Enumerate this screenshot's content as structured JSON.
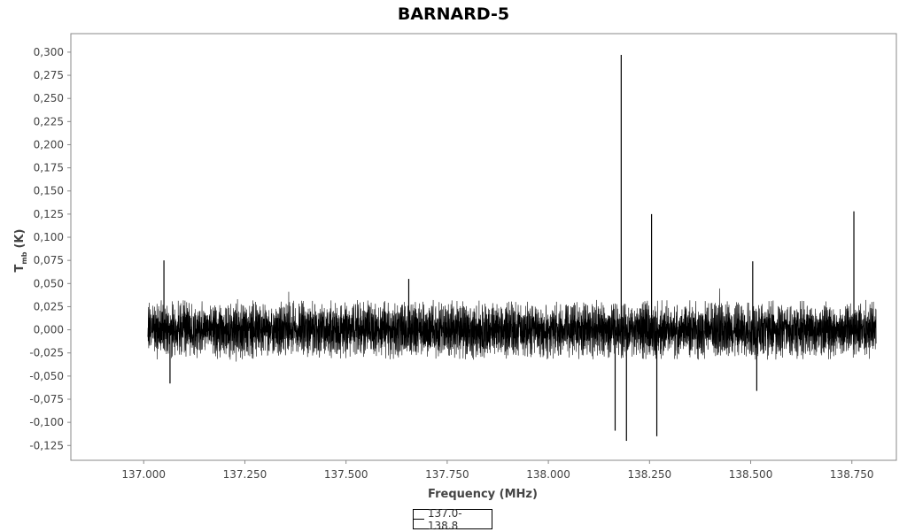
{
  "chart_data": {
    "type": "line",
    "title": "BARNARD-5",
    "xlabel": "Frequency (MHz)",
    "ylabel_main": "T",
    "ylabel_sub": "mb",
    "ylabel_unit": "(K)",
    "xlim": [
      136.82,
      138.86
    ],
    "ylim": [
      -0.141,
      0.32
    ],
    "x_ticks": [
      137.0,
      137.25,
      137.5,
      137.75,
      138.0,
      138.25,
      138.5,
      138.75
    ],
    "x_tick_labels": [
      "137.000",
      "137.250",
      "137.500",
      "137.750",
      "138.000",
      "138.250",
      "138.500",
      "138.750"
    ],
    "y_ticks": [
      0.3,
      0.275,
      0.25,
      0.225,
      0.2,
      0.175,
      0.15,
      0.125,
      0.1,
      0.075,
      0.05,
      0.025,
      0.0,
      -0.025,
      -0.05,
      -0.075,
      -0.1,
      -0.125
    ],
    "y_tick_labels": [
      "0,300",
      "0,275",
      "0,250",
      "0,225",
      "0,200",
      "0,175",
      "0,150",
      "0,125",
      "0,100",
      "0,075",
      "0,050",
      "0,025",
      "0,000",
      "-0,025",
      "-0,050",
      "-0,075",
      "-0,100",
      "-0,125"
    ],
    "grid": false,
    "legend_position": "bottom-center",
    "series": [
      {
        "name": "137.0-138.8",
        "color": "#000000",
        "x_range": [
          137.01,
          138.81
        ],
        "noise_band": [
          -0.025,
          0.025
        ],
        "features": [
          {
            "x": 137.05,
            "y": 0.075
          },
          {
            "x": 137.065,
            "y": -0.058
          },
          {
            "x": 137.655,
            "y": 0.055
          },
          {
            "x": 138.165,
            "y": -0.109
          },
          {
            "x": 138.18,
            "y": 0.297
          },
          {
            "x": 138.193,
            "y": -0.12
          },
          {
            "x": 138.255,
            "y": 0.125
          },
          {
            "x": 138.268,
            "y": -0.115
          },
          {
            "x": 138.505,
            "y": 0.074
          },
          {
            "x": 138.515,
            "y": -0.066
          },
          {
            "x": 138.755,
            "y": 0.128
          }
        ]
      }
    ]
  }
}
